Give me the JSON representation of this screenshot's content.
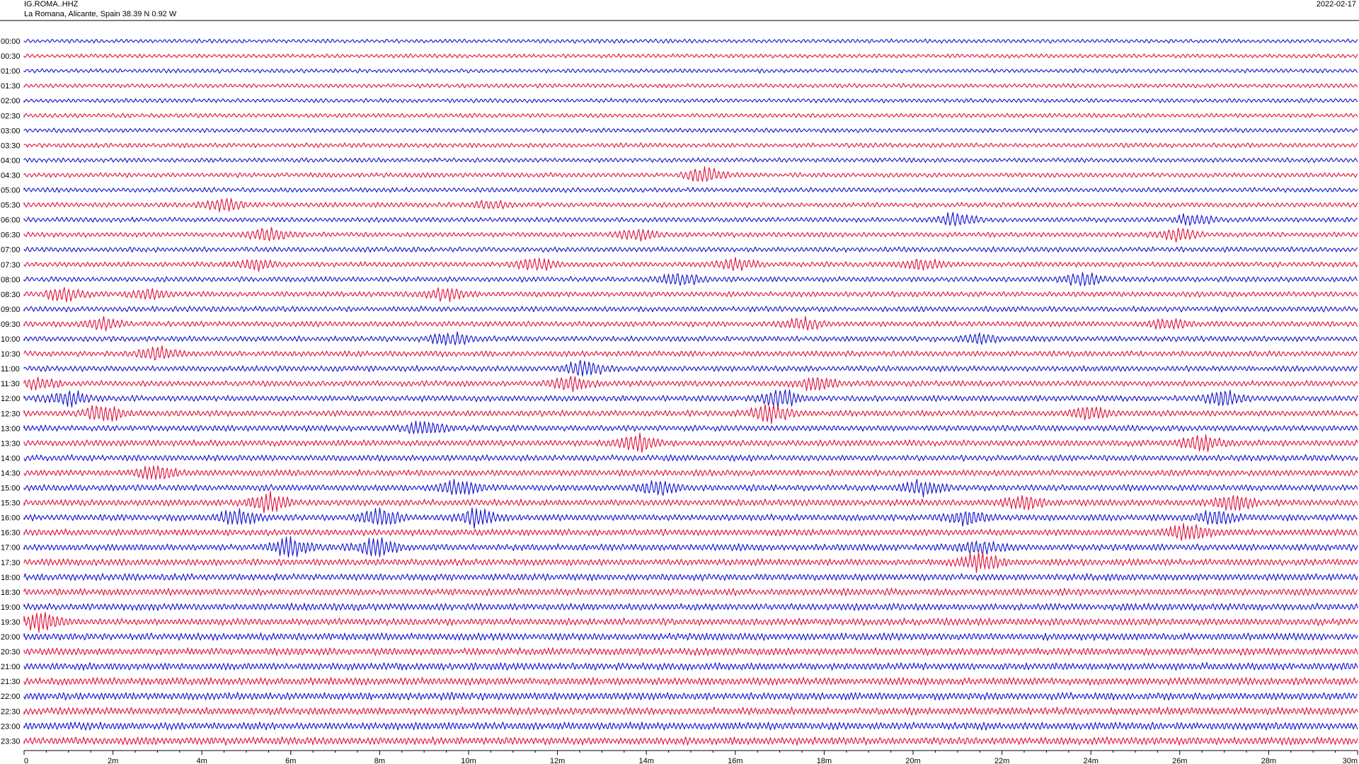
{
  "header": {
    "station": "IG.ROMA..HHZ",
    "location": "La Romana, Alicante, Spain  38.39 N 0.92 W",
    "date": "2022-02-17"
  },
  "chart_data": {
    "type": "line",
    "chart_kind": "helicorder",
    "title": "",
    "xlabel": "",
    "ylabel": "",
    "xlim": [
      0,
      30
    ],
    "x_ticks": [
      "0",
      "2m",
      "4m",
      "6m",
      "8m",
      "10m",
      "12m",
      "14m",
      "16m",
      "18m",
      "20m",
      "22m",
      "24m",
      "26m",
      "28m",
      "30m"
    ],
    "row_labels": [
      "00:00",
      "00:30",
      "01:00",
      "01:30",
      "02:00",
      "02:30",
      "03:00",
      "03:30",
      "04:00",
      "04:30",
      "05:00",
      "05:30",
      "06:00",
      "06:30",
      "07:00",
      "07:30",
      "08:00",
      "08:30",
      "09:00",
      "09:30",
      "10:00",
      "10:30",
      "11:00",
      "11:30",
      "12:00",
      "12:30",
      "13:00",
      "13:30",
      "14:00",
      "14:30",
      "15:00",
      "15:30",
      "16:00",
      "16:30",
      "17:00",
      "17:30",
      "18:00",
      "18:30",
      "19:00",
      "19:30",
      "20:00",
      "20:30",
      "21:00",
      "21:30",
      "22:00",
      "22:30",
      "23:00",
      "23:30"
    ],
    "trace_colors": [
      "#1010d0",
      "#e0103a"
    ],
    "bursts": [
      {
        "row": 9,
        "x": 15.3,
        "amp": 3.0
      },
      {
        "row": 11,
        "x": 4.5,
        "amp": 2.4
      },
      {
        "row": 11,
        "x": 10.5,
        "amp": 1.5
      },
      {
        "row": 12,
        "x": 21.0,
        "amp": 2.6
      },
      {
        "row": 12,
        "x": 26.3,
        "amp": 2.0
      },
      {
        "row": 13,
        "x": 5.5,
        "amp": 2.4
      },
      {
        "row": 13,
        "x": 13.8,
        "amp": 2.0
      },
      {
        "row": 13,
        "x": 26.0,
        "amp": 2.2
      },
      {
        "row": 15,
        "x": 5.2,
        "amp": 2.0
      },
      {
        "row": 15,
        "x": 11.5,
        "amp": 2.0
      },
      {
        "row": 15,
        "x": 16.0,
        "amp": 2.0
      },
      {
        "row": 15,
        "x": 20.2,
        "amp": 2.0
      },
      {
        "row": 16,
        "x": 14.8,
        "amp": 2.2
      },
      {
        "row": 16,
        "x": 23.8,
        "amp": 2.2
      },
      {
        "row": 17,
        "x": 0.9,
        "amp": 2.4
      },
      {
        "row": 17,
        "x": 2.8,
        "amp": 1.6
      },
      {
        "row": 17,
        "x": 9.5,
        "amp": 2.0
      },
      {
        "row": 19,
        "x": 1.8,
        "amp": 2.0
      },
      {
        "row": 19,
        "x": 17.5,
        "amp": 2.0
      },
      {
        "row": 19,
        "x": 25.8,
        "amp": 1.8
      },
      {
        "row": 20,
        "x": 9.6,
        "amp": 2.0
      },
      {
        "row": 20,
        "x": 21.5,
        "amp": 1.5
      },
      {
        "row": 21,
        "x": 3.0,
        "amp": 2.0
      },
      {
        "row": 22,
        "x": 12.6,
        "amp": 2.4
      },
      {
        "row": 23,
        "x": 12.3,
        "amp": 2.0
      },
      {
        "row": 23,
        "x": 17.8,
        "amp": 2.2
      },
      {
        "row": 23,
        "x": 0.3,
        "amp": 1.5
      },
      {
        "row": 24,
        "x": 1.0,
        "amp": 2.2
      },
      {
        "row": 24,
        "x": 17.0,
        "amp": 2.6
      },
      {
        "row": 24,
        "x": 27.0,
        "amp": 2.6
      },
      {
        "row": 25,
        "x": 1.8,
        "amp": 2.4
      },
      {
        "row": 25,
        "x": 16.8,
        "amp": 2.6
      },
      {
        "row": 25,
        "x": 24.0,
        "amp": 1.6
      },
      {
        "row": 26,
        "x": 9.0,
        "amp": 2.0
      },
      {
        "row": 27,
        "x": 13.8,
        "amp": 2.4
      },
      {
        "row": 27,
        "x": 26.5,
        "amp": 2.4
      },
      {
        "row": 29,
        "x": 3.0,
        "amp": 2.0
      },
      {
        "row": 30,
        "x": 9.8,
        "amp": 2.0
      },
      {
        "row": 30,
        "x": 14.2,
        "amp": 2.0
      },
      {
        "row": 30,
        "x": 20.2,
        "amp": 2.0
      },
      {
        "row": 31,
        "x": 5.5,
        "amp": 2.6
      },
      {
        "row": 31,
        "x": 22.5,
        "amp": 1.8
      },
      {
        "row": 31,
        "x": 27.2,
        "amp": 2.4
      },
      {
        "row": 32,
        "x": 4.8,
        "amp": 2.0
      },
      {
        "row": 32,
        "x": 8.0,
        "amp": 2.6
      },
      {
        "row": 32,
        "x": 10.2,
        "amp": 2.4
      },
      {
        "row": 32,
        "x": 21.2,
        "amp": 2.0
      },
      {
        "row": 32,
        "x": 26.8,
        "amp": 1.8
      },
      {
        "row": 33,
        "x": 26.2,
        "amp": 2.4
      },
      {
        "row": 34,
        "x": 6.0,
        "amp": 2.4
      },
      {
        "row": 34,
        "x": 7.9,
        "amp": 2.6
      },
      {
        "row": 34,
        "x": 21.5,
        "amp": 1.6
      },
      {
        "row": 35,
        "x": 21.5,
        "amp": 2.4
      },
      {
        "row": 39,
        "x": 0.4,
        "amp": 2.2
      }
    ]
  }
}
